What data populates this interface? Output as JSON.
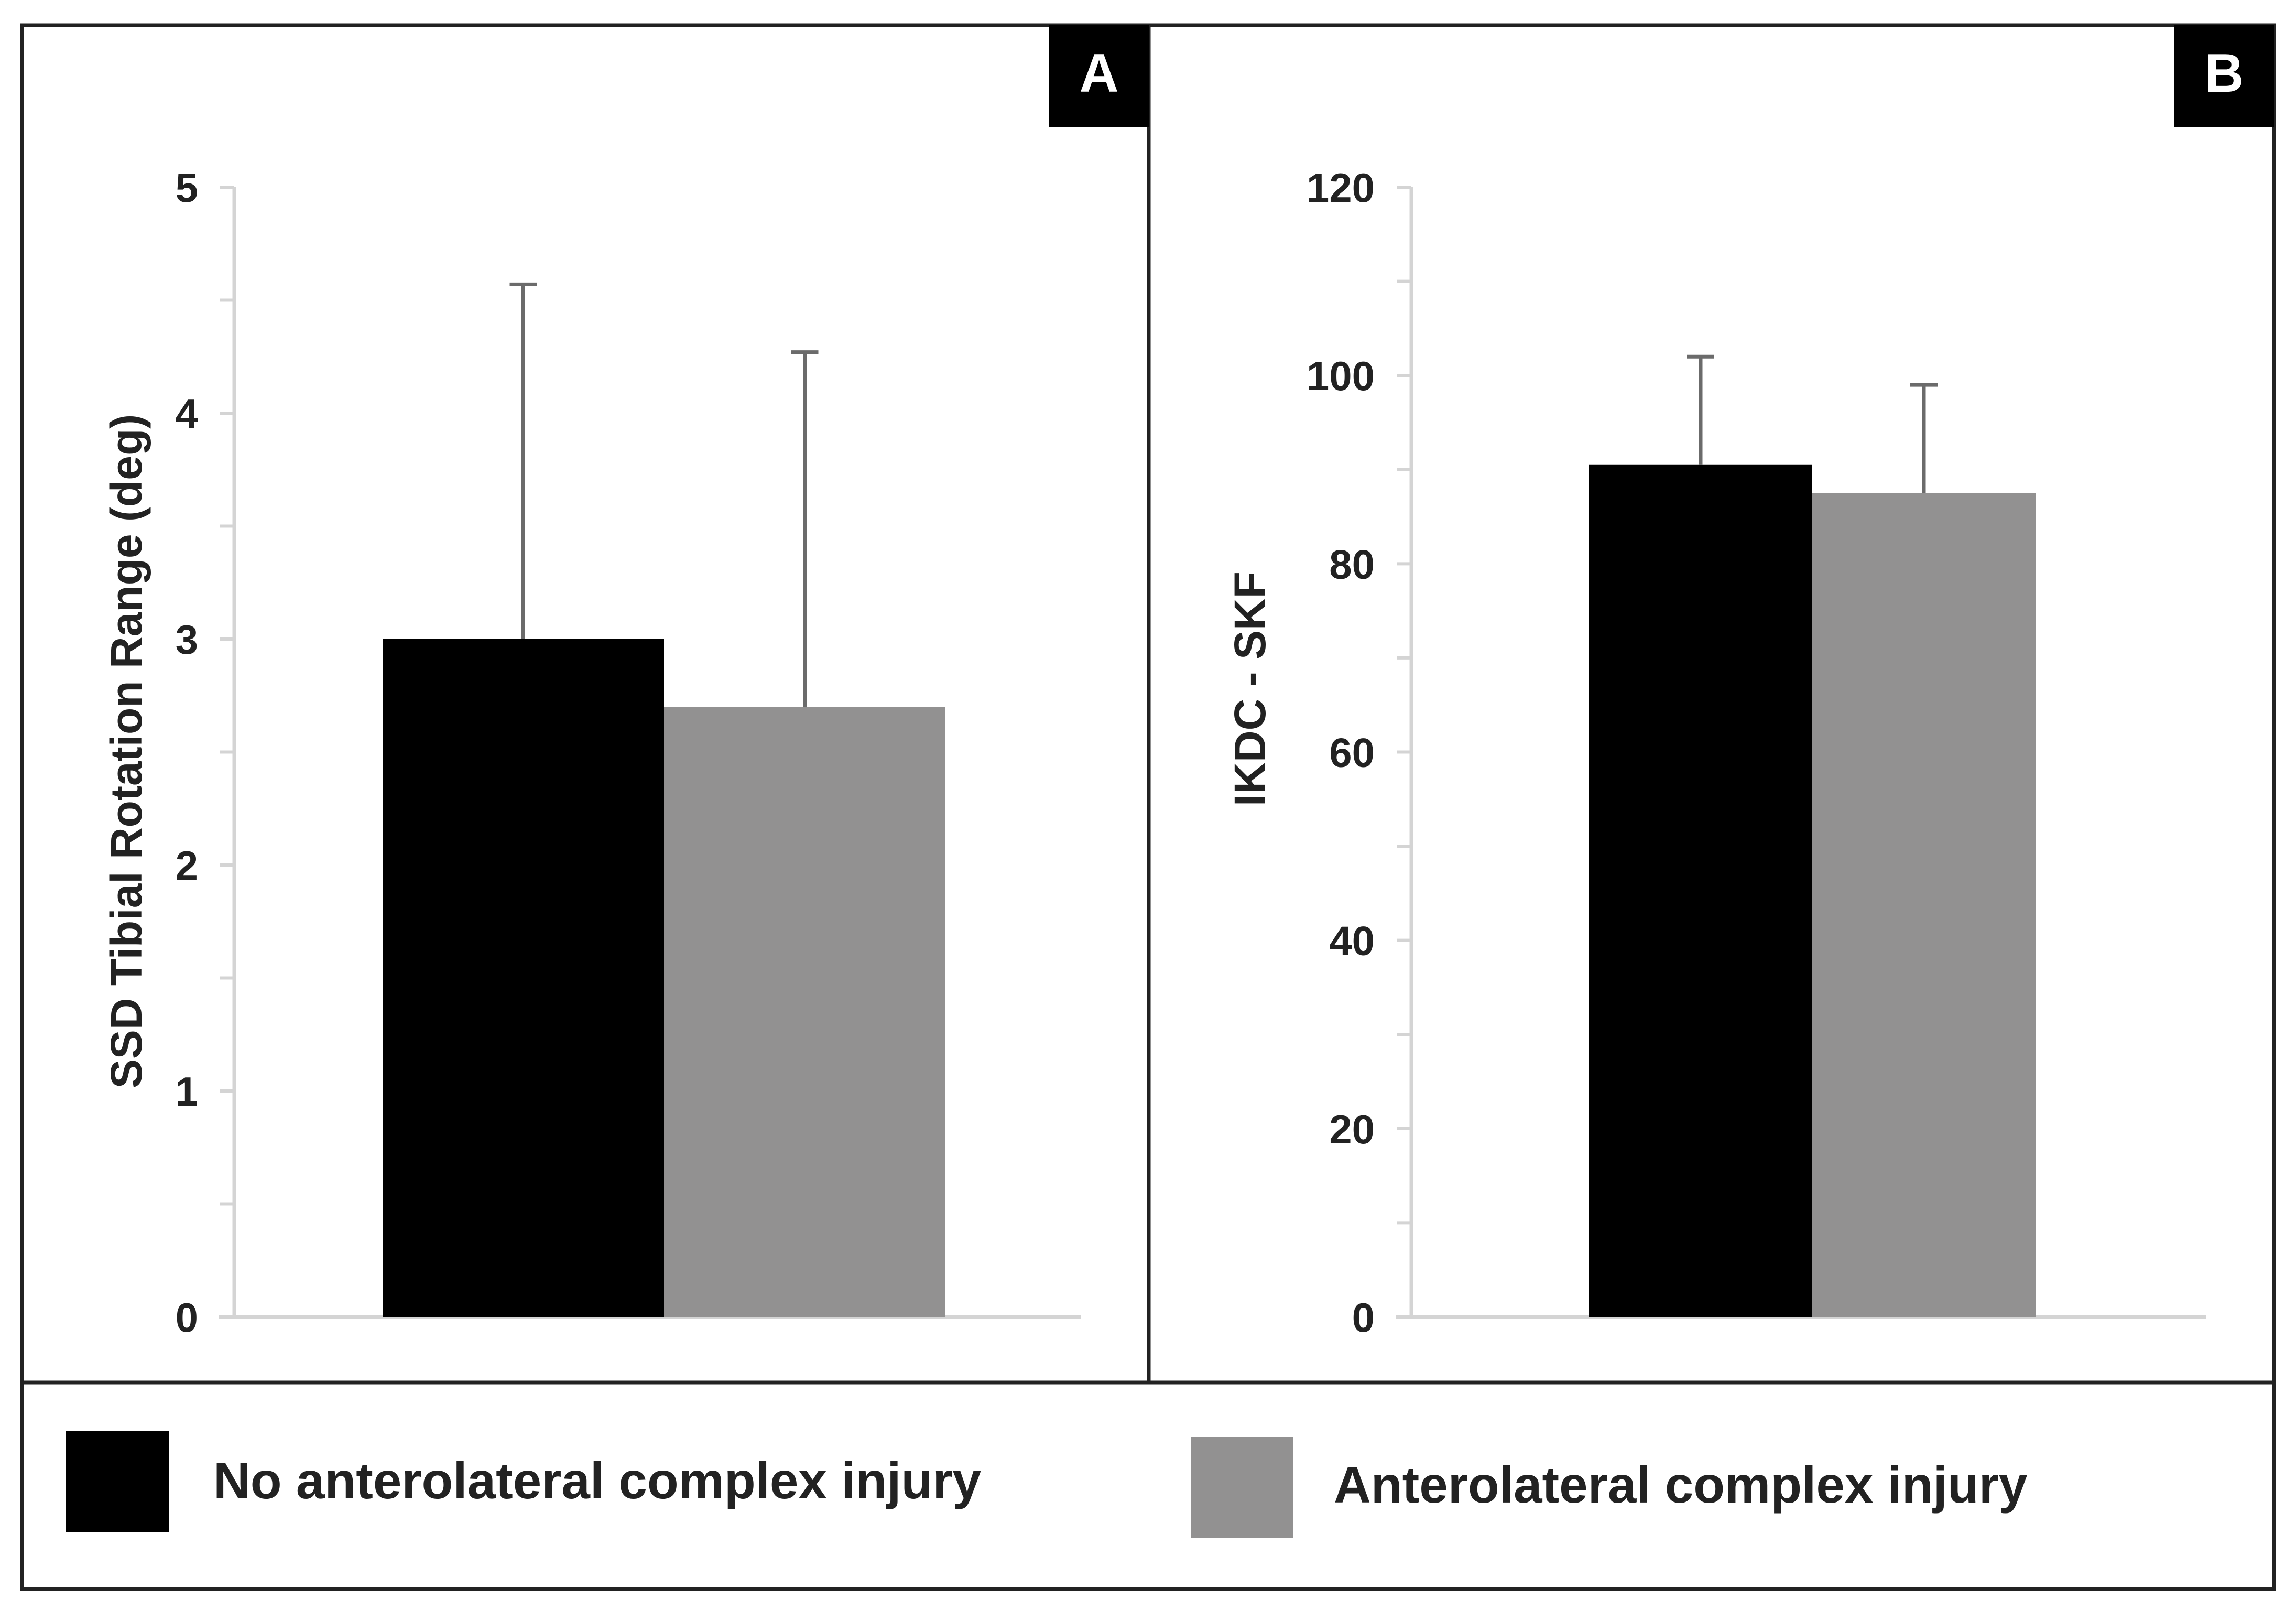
{
  "chart_data": [
    {
      "type": "bar",
      "panel_label": "A",
      "title": "",
      "xlabel": "",
      "ylabel": "SSD Tibial Rotation Range (deg)",
      "ylim": [
        0,
        5
      ],
      "yticks": [
        0,
        1,
        2,
        3,
        4,
        5
      ],
      "y_minor_step": 0.5,
      "grid": false,
      "series": [
        {
          "name": "No anterolateral complex injury",
          "value": 3.0,
          "error_upper": 4.57,
          "color": "#000000"
        },
        {
          "name": "Anterolateral complex injury",
          "value": 2.7,
          "error_upper": 4.27,
          "color": "#929191"
        }
      ]
    },
    {
      "type": "bar",
      "panel_label": "B",
      "title": "",
      "xlabel": "",
      "ylabel": "IKDC - SKF",
      "ylim": [
        0,
        120
      ],
      "yticks": [
        0,
        20,
        40,
        60,
        80,
        100,
        120
      ],
      "y_minor_step": 10,
      "grid": false,
      "series": [
        {
          "name": "No anterolateral complex injury",
          "value": 90.5,
          "error_upper": 102,
          "color": "#000000"
        },
        {
          "name": "Anterolateral complex injury",
          "value": 87.5,
          "error_upper": 99,
          "color": "#929191"
        }
      ]
    }
  ],
  "legend": {
    "position": "bottom",
    "items": [
      {
        "label": "No anterolateral complex injury",
        "color": "#000000"
      },
      {
        "label": "Anterolateral complex injury",
        "color": "#929191"
      }
    ]
  }
}
